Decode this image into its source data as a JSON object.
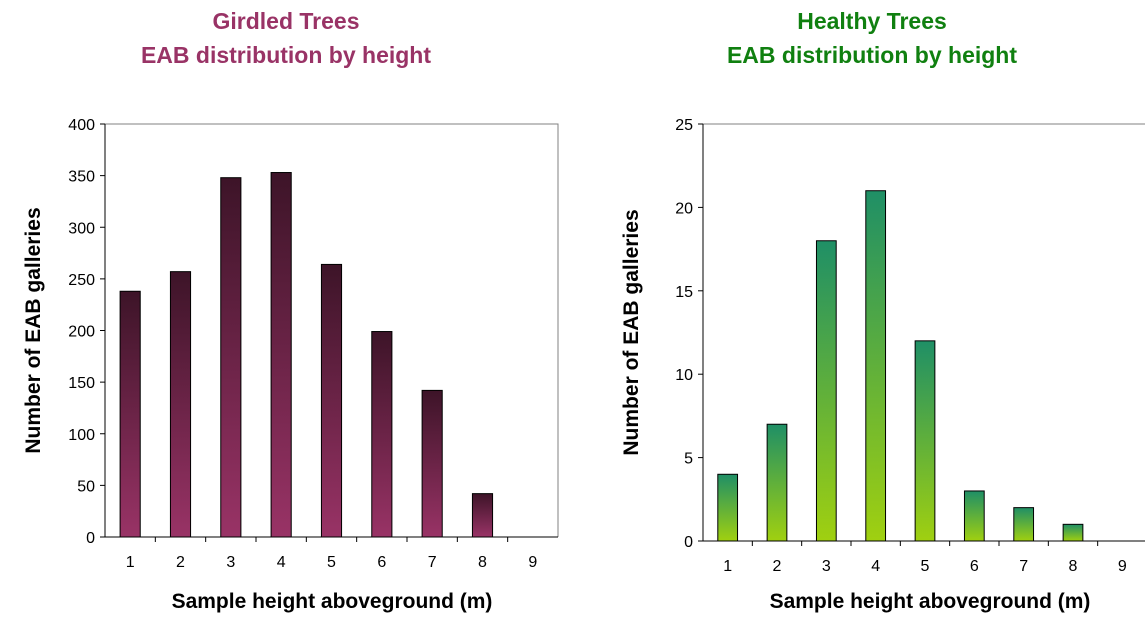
{
  "chart_data": [
    {
      "type": "bar",
      "title": "Girdled Trees",
      "subtitle": "EAB distribution by height",
      "title_color": "#993366",
      "xlabel": "Sample height aboveground (m)",
      "ylabel": "Number of EAB galleries",
      "categories": [
        "1",
        "2",
        "3",
        "4",
        "5",
        "6",
        "7",
        "8",
        "9"
      ],
      "values": [
        238,
        257,
        348,
        353,
        264,
        199,
        142,
        42,
        0
      ],
      "ylim": [
        0,
        400
      ],
      "yticks": [
        "0",
        "50",
        "100",
        "150",
        "200",
        "250",
        "300",
        "350",
        "400"
      ],
      "bar_color_top": "#3d1428",
      "bar_color_bottom": "#993366",
      "grid": false,
      "legend": "none"
    },
    {
      "type": "bar",
      "title": "Healthy Trees",
      "subtitle": "EAB distribution by height",
      "title_color": "#108010",
      "xlabel": "Sample height aboveground (m)",
      "ylabel": "Number of EAB galleries",
      "categories": [
        "1",
        "2",
        "3",
        "4",
        "5",
        "6",
        "7",
        "8",
        "9"
      ],
      "values": [
        4,
        7,
        18,
        21,
        12,
        3,
        2,
        1,
        0
      ],
      "ylim": [
        0,
        25
      ],
      "yticks": [
        "0",
        "5",
        "10",
        "15",
        "20",
        "25"
      ],
      "bar_color_top": "#1f8f66",
      "bar_color_bottom": "#a0d010",
      "grid": false,
      "legend": "none"
    }
  ]
}
